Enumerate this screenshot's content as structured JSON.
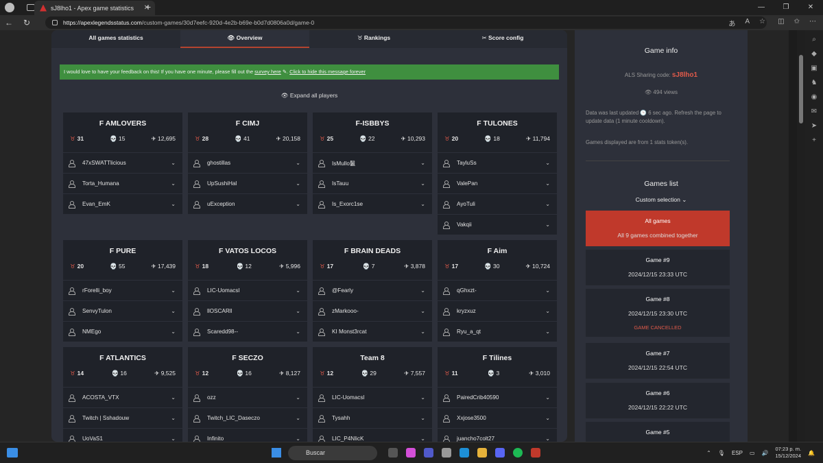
{
  "browser": {
    "tab_title": "sJ8lho1 - Apex game statistics",
    "url_host": "https://apexlegendsstatus.com",
    "url_path": "/custom-games/30d7eefc-920d-4e2b-b69e-b0d7d0806a0d/game-0",
    "new_tab": "+",
    "close_tab": "✕"
  },
  "nav": {
    "tabs": [
      "All games statistics",
      "Overview",
      "Rankings",
      "Score config"
    ],
    "active": "Overview"
  },
  "feedback": {
    "text": "I would love to have your feedback on this! If you have one minute, please fill out the ",
    "link": "survey here",
    "hide": "Click to hide this message forever"
  },
  "expand_label": "Expand all players",
  "teams": [
    {
      "name": "F AMLOVERS",
      "points": "31",
      "kills": "15",
      "damage": "12,695",
      "players": [
        "47xSWATTlicious",
        "Torta_Humana",
        "Evan_EmK"
      ]
    },
    {
      "name": "F CIMJ",
      "points": "28",
      "kills": "41",
      "damage": "20,158",
      "players": [
        "ghostillas",
        "UpSushiHal",
        "uException"
      ]
    },
    {
      "name": "F-ISBBYS",
      "points": "25",
      "kills": "22",
      "damage": "10,293",
      "players": [
        "IsMullo鬣",
        "IsTauu",
        "Is_Exorc1se"
      ]
    },
    {
      "name": "F TULONES",
      "points": "20",
      "kills": "18",
      "damage": "11,794",
      "players": [
        "TayluSs",
        "ValePan",
        "AyoTuli",
        "Vakqii"
      ]
    },
    {
      "name": "F PURE",
      "points": "20",
      "kills": "55",
      "damage": "17,439",
      "players": [
        "rForelli_boy",
        "SenvyTulon",
        "NMEgo"
      ]
    },
    {
      "name": "F VATOS LOCOS",
      "points": "18",
      "kills": "12",
      "damage": "5,996",
      "players": [
        "LIC-Uomacsl",
        "llOSCARll",
        "Scaredd98--"
      ]
    },
    {
      "name": "F BRAIN DEADS",
      "points": "17",
      "kills": "7",
      "damage": "3,878",
      "players": [
        "@Fearly",
        "zMarkooo-",
        "KI Monst3rcat"
      ]
    },
    {
      "name": "F Aim",
      "points": "17",
      "kills": "30",
      "damage": "10,724",
      "players": [
        "qGhxzt-",
        "kryzxuz",
        "Ryu_a_qt"
      ]
    },
    {
      "name": "F ATLANTICS",
      "points": "14",
      "kills": "16",
      "damage": "9,525",
      "players": [
        "ACOSTA_VTX",
        "Twitch | Sshadouw",
        "UoVaS1"
      ]
    },
    {
      "name": "F SECZO",
      "points": "12",
      "kills": "16",
      "damage": "8,127",
      "players": [
        "ozz",
        "Twitch_LIC_Daseczo",
        "Infinito"
      ]
    },
    {
      "name": "Team 8",
      "points": "12",
      "kills": "29",
      "damage": "7,557",
      "players": [
        "LIC-Uomacsl",
        "Tysahh",
        "LIC_P4NlicK"
      ]
    },
    {
      "name": "F Tilines",
      "points": "11",
      "kills": "3",
      "damage": "3,010",
      "players": [
        "PairedCrib40590",
        "Xxjose3500",
        "juancho7colt27"
      ]
    }
  ],
  "sidebar": {
    "title": "Game info",
    "sharing_label": "ALS Sharing code: ",
    "sharing_code": "sJ8lho1",
    "views": "494 views",
    "updated": "Data was last updated 🕒 6 sec ago. Refresh the page to update data (1 minute cooldown).",
    "tokens": "Games displayed are from 1 stats token(s).",
    "games_title": "Games list",
    "dropdown": "Custom selection",
    "games": [
      {
        "title": "All games",
        "sub": "All 9 games combined together"
      },
      {
        "title": "Game #9",
        "date": "2024/12/15 23:33 UTC"
      },
      {
        "title": "Game #8",
        "date": "2024/12/15 23:30 UTC",
        "status": "GAME CANCELLED"
      },
      {
        "title": "Game #7",
        "date": "2024/12/15 22:54 UTC"
      },
      {
        "title": "Game #6",
        "date": "2024/12/15 22:22 UTC"
      },
      {
        "title": "Game #5"
      }
    ]
  },
  "taskbar": {
    "search": "Buscar",
    "lang": "ESP",
    "time": "07:23 p. m.",
    "date": "15/12/2024"
  }
}
